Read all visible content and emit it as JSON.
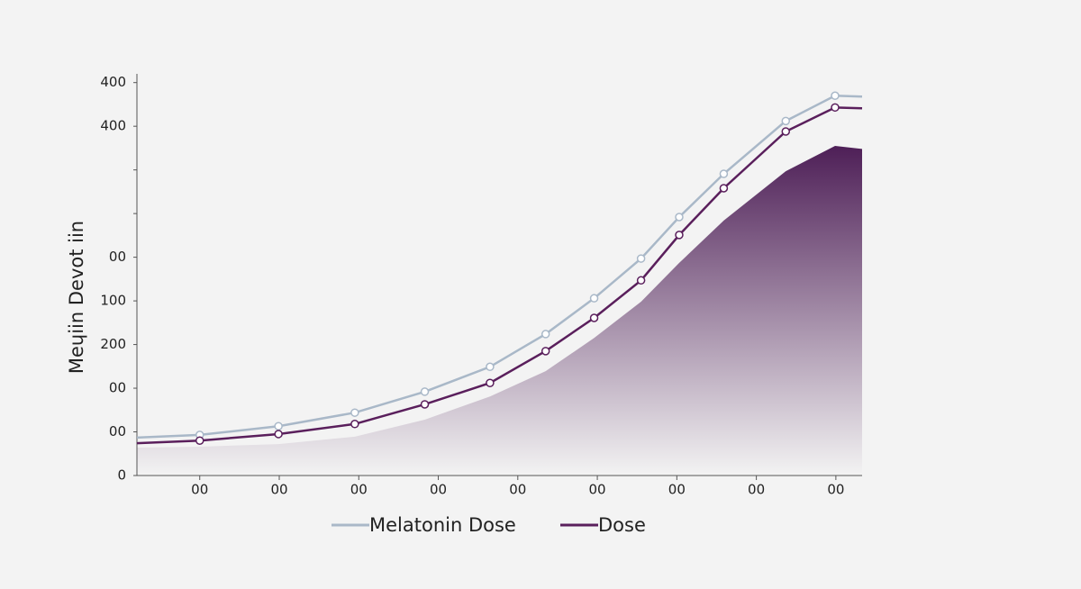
{
  "chart_data": {
    "type": "line",
    "y_axis_label": "Meɥiin Devot iin",
    "y_tick_labels": [
      "0",
      "00",
      "00",
      "200",
      "100",
      "00",
      null,
      null,
      "400",
      "400"
    ],
    "x_tick_labels": [
      "00",
      "00",
      "00",
      "00",
      "00",
      "00",
      "00",
      "00",
      "00"
    ],
    "xlim": [
      -0.79,
      8.33
    ],
    "ylim": [
      0,
      9.2
    ],
    "x": [
      -0.79,
      0,
      0.99,
      1.95,
      2.83,
      3.65,
      4.35,
      4.96,
      5.55,
      6.03,
      6.59,
      7.37,
      7.99,
      8.33
    ],
    "series": [
      {
        "name": "Melatonin Dose",
        "color": "#a9b8c8",
        "values": [
          0.87,
          0.93,
          1.13,
          1.44,
          1.92,
          2.49,
          3.24,
          4.06,
          4.97,
          5.92,
          6.91,
          8.12,
          8.7,
          8.68
        ]
      },
      {
        "name": "Dose",
        "color": "#5a1f5c",
        "values": [
          0.74,
          0.8,
          0.95,
          1.18,
          1.63,
          2.12,
          2.85,
          3.61,
          4.47,
          5.51,
          6.58,
          7.88,
          8.43,
          8.41
        ]
      }
    ],
    "area": {
      "color": "#4e1f57",
      "values": [
        0.64,
        0.66,
        0.72,
        0.89,
        1.28,
        1.81,
        2.39,
        3.15,
        3.98,
        4.87,
        5.84,
        6.97,
        7.55,
        7.48
      ]
    }
  }
}
